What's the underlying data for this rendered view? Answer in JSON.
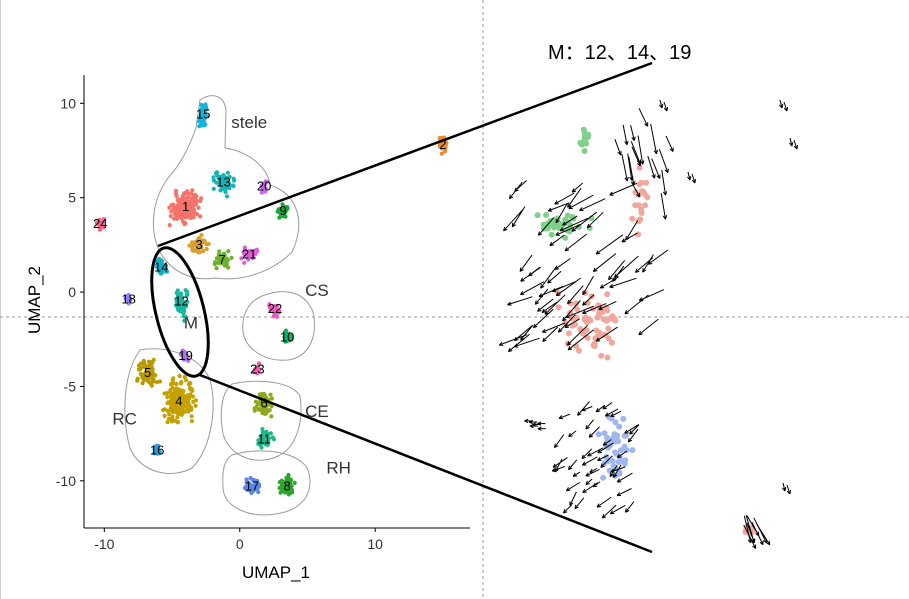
{
  "chart_data": {
    "type": "scatter",
    "xlabel": "UMAP_1",
    "ylabel": "UMAP_2",
    "xlim": [
      -11.5,
      17
    ],
    "ylim": [
      -12.5,
      11.5
    ],
    "x_ticks": [
      -10,
      0,
      10
    ],
    "y_ticks": [
      10,
      5,
      0,
      -5,
      -10
    ],
    "grid": false,
    "clusters": [
      {
        "label": "1",
        "x": -4.0,
        "y": 4.5,
        "color": "#f4736b"
      },
      {
        "label": "2",
        "x": 15.0,
        "y": 7.8,
        "color": "#ec8a32"
      },
      {
        "label": "3",
        "x": -3.0,
        "y": 2.5,
        "color": "#d8a032"
      },
      {
        "label": "4",
        "x": -4.5,
        "y": -5.8,
        "color": "#c4a000"
      },
      {
        "label": "5",
        "x": -6.8,
        "y": -4.3,
        "color": "#b89a00"
      },
      {
        "label": "6",
        "x": 1.8,
        "y": -5.9,
        "color": "#8eaa1c"
      },
      {
        "label": "7",
        "x": -1.3,
        "y": 1.7,
        "color": "#6db12a"
      },
      {
        "label": "8",
        "x": 3.5,
        "y": -10.3,
        "color": "#2ea52e"
      },
      {
        "label": "9",
        "x": 3.2,
        "y": 4.3,
        "color": "#17a83b"
      },
      {
        "label": "10",
        "x": 3.5,
        "y": -2.4,
        "color": "#12b062"
      },
      {
        "label": "11",
        "x": 1.8,
        "y": -7.8,
        "color": "#1ab88a"
      },
      {
        "label": "12",
        "x": -4.3,
        "y": -0.5,
        "color": "#18b8a0"
      },
      {
        "label": "13",
        "x": -1.2,
        "y": 5.8,
        "color": "#16b3b6"
      },
      {
        "label": "14",
        "x": -5.8,
        "y": 1.3,
        "color": "#14b0c8"
      },
      {
        "label": "15",
        "x": -2.7,
        "y": 9.4,
        "color": "#13b4dc"
      },
      {
        "label": "16",
        "x": -6.1,
        "y": -8.4,
        "color": "#2a9de0"
      },
      {
        "label": "17",
        "x": 0.9,
        "y": -10.3,
        "color": "#5a86ea"
      },
      {
        "label": "18",
        "x": -8.2,
        "y": -0.4,
        "color": "#8f7ef0"
      },
      {
        "label": "19",
        "x": -4.0,
        "y": -3.4,
        "color": "#b06ef0"
      },
      {
        "label": "20",
        "x": 1.8,
        "y": 5.6,
        "color": "#c865e6"
      },
      {
        "label": "21",
        "x": 0.7,
        "y": 2.0,
        "color": "#de5dd8"
      },
      {
        "label": "22",
        "x": 2.6,
        "y": -0.9,
        "color": "#ee5ac4"
      },
      {
        "label": "23",
        "x": 1.3,
        "y": -4.1,
        "color": "#f55aa8"
      },
      {
        "label": "24",
        "x": -10.3,
        "y": 3.6,
        "color": "#f8628a"
      }
    ],
    "regions": [
      {
        "label": "stele",
        "x": 0.7,
        "y": 9.0
      },
      {
        "label": "CS",
        "x": 5.7,
        "y": 0.1
      },
      {
        "label": "M",
        "x": -3.6,
        "y": -1.6
      },
      {
        "label": "RC",
        "x": -8.5,
        "y": -6.7
      },
      {
        "label": "CE",
        "x": 5.7,
        "y": -6.3
      },
      {
        "label": "RH",
        "x": 7.3,
        "y": -9.3
      }
    ],
    "zoom_label": "M：12、14、19",
    "zoom_clusters": [
      "12",
      "14",
      "19"
    ]
  }
}
